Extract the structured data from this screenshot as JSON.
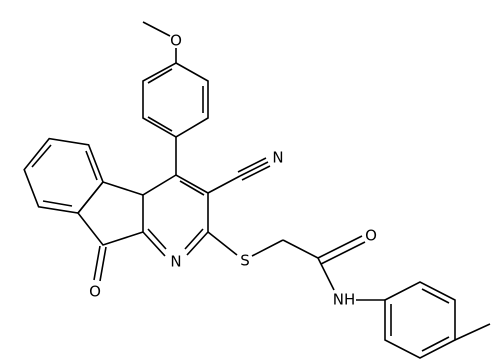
{
  "atoms": {
    "methoxy_oxygen": "O",
    "nitrile_nitrogen": "N",
    "pyridine_nitrogen": "N",
    "sulfur": "S",
    "amide_oxygen": "O",
    "amide_nitrogen": "NH",
    "ketone_oxygen": "O"
  }
}
